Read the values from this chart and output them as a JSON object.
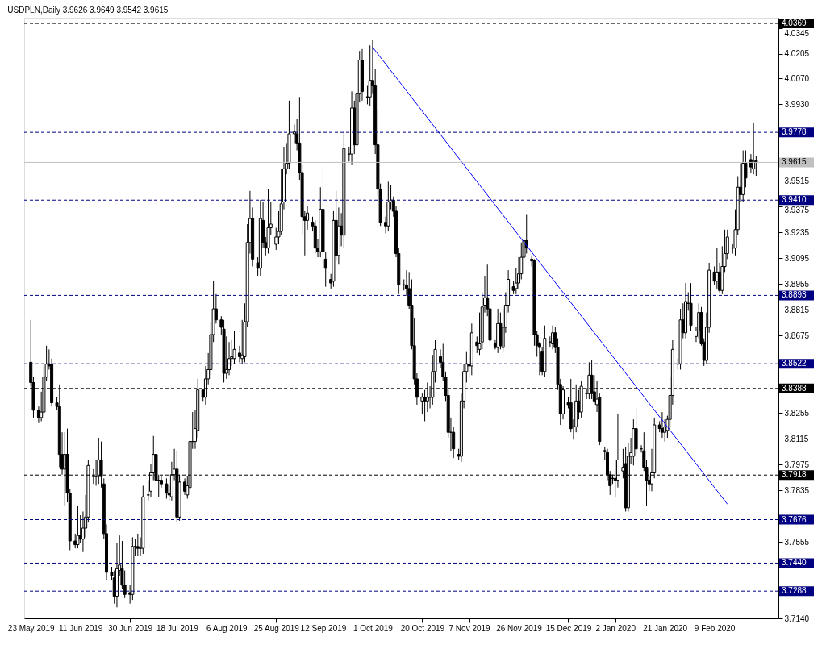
{
  "chart_data": {
    "type": "candlestick",
    "title": "USDPLN,Daily  3.9626 3.9649 3.9542 3.9615",
    "x": [
      "2019-05-23",
      "2019-05-24",
      "2019-05-26",
      "2019-05-27",
      "2019-05-28",
      "2019-05-29",
      "2019-05-30",
      "2019-05-31",
      "2019-06-02",
      "2019-06-03",
      "2019-06-04",
      "2019-06-05",
      "2019-06-06",
      "2019-06-07",
      "2019-06-09",
      "2019-06-10",
      "2019-06-11",
      "2019-06-12",
      "2019-06-13",
      "2019-06-14",
      "2019-06-16",
      "2019-06-17",
      "2019-06-18",
      "2019-06-19",
      "2019-06-20",
      "2019-06-21",
      "2019-06-23",
      "2019-06-24",
      "2019-06-25",
      "2019-06-26",
      "2019-06-27",
      "2019-06-28",
      "2019-06-30",
      "2019-07-01",
      "2019-07-02",
      "2019-07-03",
      "2019-07-04",
      "2019-07-05",
      "2019-07-07",
      "2019-07-08",
      "2019-07-09",
      "2019-07-10",
      "2019-07-11",
      "2019-07-12",
      "2019-07-14",
      "2019-07-15",
      "2019-07-16",
      "2019-07-17",
      "2019-07-18",
      "2019-07-19",
      "2019-07-21",
      "2019-07-22",
      "2019-07-23",
      "2019-07-24",
      "2019-07-25",
      "2019-07-26",
      "2019-07-28",
      "2019-07-29",
      "2019-07-30",
      "2019-07-31",
      "2019-08-01",
      "2019-08-02",
      "2019-08-04",
      "2019-08-05",
      "2019-08-06",
      "2019-08-07",
      "2019-08-08",
      "2019-08-09",
      "2019-08-11",
      "2019-08-12",
      "2019-08-13",
      "2019-08-14",
      "2019-08-15",
      "2019-08-16",
      "2019-08-18",
      "2019-08-19",
      "2019-08-20",
      "2019-08-21",
      "2019-08-22",
      "2019-08-23",
      "2019-08-25",
      "2019-08-26",
      "2019-08-27",
      "2019-08-28",
      "2019-08-29",
      "2019-08-30",
      "2019-09-01",
      "2019-09-02",
      "2019-09-03",
      "2019-09-04",
      "2019-09-05",
      "2019-09-06",
      "2019-09-08",
      "2019-09-09",
      "2019-09-10",
      "2019-09-11",
      "2019-09-12",
      "2019-09-13",
      "2019-09-15",
      "2019-09-16",
      "2019-09-17",
      "2019-09-18",
      "2019-09-19",
      "2019-09-20",
      "2019-09-22",
      "2019-09-23",
      "2019-09-24",
      "2019-09-25",
      "2019-09-26",
      "2019-09-27",
      "2019-09-29",
      "2019-09-30",
      "2019-10-01",
      "2019-10-02",
      "2019-10-03",
      "2019-10-04",
      "2019-10-06",
      "2019-10-07",
      "2019-10-08",
      "2019-10-09",
      "2019-10-10",
      "2019-10-11",
      "2019-10-13",
      "2019-10-14",
      "2019-10-15",
      "2019-10-16",
      "2019-10-17",
      "2019-10-18",
      "2019-10-20",
      "2019-10-21",
      "2019-10-22",
      "2019-10-23",
      "2019-10-24",
      "2019-10-25",
      "2019-10-27",
      "2019-10-28",
      "2019-10-29",
      "2019-10-30",
      "2019-10-31",
      "2019-11-01",
      "2019-11-03",
      "2019-11-04",
      "2019-11-05",
      "2019-11-06",
      "2019-11-07",
      "2019-11-08",
      "2019-11-10",
      "2019-11-11",
      "2019-11-12",
      "2019-11-13",
      "2019-11-14",
      "2019-11-15",
      "2019-11-17",
      "2019-11-18",
      "2019-11-19",
      "2019-11-20",
      "2019-11-21",
      "2019-11-22",
      "2019-11-24",
      "2019-11-25",
      "2019-11-26",
      "2019-11-27",
      "2019-11-28",
      "2019-11-29",
      "2019-12-01",
      "2019-12-02",
      "2019-12-03",
      "2019-12-04",
      "2019-12-05",
      "2019-12-06",
      "2019-12-08",
      "2019-12-09",
      "2019-12-10",
      "2019-12-11",
      "2019-12-12",
      "2019-12-13",
      "2019-12-15",
      "2019-12-16",
      "2019-12-17",
      "2019-12-18",
      "2019-12-19",
      "2019-12-20",
      "2019-12-22",
      "2019-12-23",
      "2019-12-24",
      "2019-12-25",
      "2019-12-26",
      "2019-12-27",
      "2019-12-29",
      "2019-12-30",
      "2019-12-31",
      "2020-01-01",
      "2020-01-02",
      "2020-01-03",
      "2020-01-05",
      "2020-01-06",
      "2020-01-07",
      "2020-01-08",
      "2020-01-09",
      "2020-01-10",
      "2020-01-12",
      "2020-01-13",
      "2020-01-14",
      "2020-01-15",
      "2020-01-16",
      "2020-01-17",
      "2020-01-19",
      "2020-01-20",
      "2020-01-21",
      "2020-01-22",
      "2020-01-23",
      "2020-01-24",
      "2020-01-26",
      "2020-01-27",
      "2020-01-28",
      "2020-01-29",
      "2020-01-30",
      "2020-01-31",
      "2020-02-02",
      "2020-02-03",
      "2020-02-04",
      "2020-02-05",
      "2020-02-06",
      "2020-02-07",
      "2020-02-09",
      "2020-02-10",
      "2020-02-11",
      "2020-02-12",
      "2020-02-13",
      "2020-02-14",
      "2020-02-16",
      "2020-02-17",
      "2020-02-18",
      "2020-02-19",
      "2020-02-20",
      "2020-02-21",
      "2020-02-23",
      "2020-02-24",
      "2020-02-25"
    ],
    "ohlc": [
      [
        3.853,
        3.876,
        3.84,
        3.842
      ],
      [
        3.842,
        3.845,
        3.823,
        3.827
      ],
      [
        3.827,
        3.829,
        3.82,
        3.823
      ],
      [
        3.823,
        3.837,
        3.821,
        3.826
      ],
      [
        3.826,
        3.851,
        3.824,
        3.845
      ],
      [
        3.845,
        3.862,
        3.843,
        3.852
      ],
      [
        3.852,
        3.86,
        3.849,
        3.851
      ],
      [
        3.852,
        3.855,
        3.829,
        3.831
      ],
      [
        3.831,
        3.834,
        3.827,
        3.829
      ],
      [
        3.829,
        3.841,
        3.796,
        3.803
      ],
      [
        3.803,
        3.815,
        3.792,
        3.795
      ],
      [
        3.795,
        3.815,
        3.775,
        3.803
      ],
      [
        3.803,
        3.817,
        3.777,
        3.782
      ],
      [
        3.782,
        3.784,
        3.751,
        3.756
      ],
      [
        3.756,
        3.76,
        3.752,
        3.754
      ],
      [
        3.754,
        3.775,
        3.752,
        3.759
      ],
      [
        3.759,
        3.77,
        3.755,
        3.757
      ],
      [
        3.757,
        3.772,
        3.75,
        3.763
      ],
      [
        3.763,
        3.781,
        3.758,
        3.769
      ],
      [
        3.769,
        3.8,
        3.766,
        3.797
      ],
      [
        3.791,
        3.795,
        3.787,
        3.791
      ],
      [
        3.791,
        3.8,
        3.786,
        3.791
      ],
      [
        3.791,
        3.812,
        3.787,
        3.8
      ],
      [
        3.8,
        3.81,
        3.785,
        3.791
      ],
      [
        3.787,
        3.79,
        3.757,
        3.76
      ],
      [
        3.76,
        3.765,
        3.735,
        3.739
      ],
      [
        3.739,
        3.742,
        3.735,
        3.737
      ],
      [
        3.736,
        3.74,
        3.722,
        3.726
      ],
      [
        3.726,
        3.755,
        3.72,
        3.741
      ],
      [
        3.74,
        3.759,
        3.737,
        3.743
      ],
      [
        3.741,
        3.756,
        3.73,
        3.732
      ],
      [
        3.732,
        3.74,
        3.725,
        3.727
      ],
      [
        3.728,
        3.732,
        3.722,
        3.727
      ],
      [
        3.727,
        3.758,
        3.724,
        3.753
      ],
      [
        3.753,
        3.757,
        3.748,
        3.753
      ],
      [
        3.753,
        3.76,
        3.748,
        3.752
      ],
      [
        3.752,
        3.758,
        3.748,
        3.752
      ],
      [
        3.752,
        3.786,
        3.749,
        3.78
      ],
      [
        3.781,
        3.789,
        3.778,
        3.781
      ],
      [
        3.783,
        3.798,
        3.78,
        3.793
      ],
      [
        3.793,
        3.813,
        3.789,
        3.803
      ],
      [
        3.803,
        3.813,
        3.787,
        3.789
      ],
      [
        3.789,
        3.792,
        3.78,
        3.789
      ],
      [
        3.789,
        3.791,
        3.785,
        3.787
      ],
      [
        3.787,
        3.79,
        3.779,
        3.782
      ],
      [
        3.782,
        3.786,
        3.778,
        3.781
      ],
      [
        3.78,
        3.799,
        3.778,
        3.792
      ],
      [
        3.792,
        3.806,
        3.789,
        3.795
      ],
      [
        3.795,
        3.805,
        3.766,
        3.769
      ],
      [
        3.769,
        3.792,
        3.767,
        3.788
      ],
      [
        3.788,
        3.79,
        3.781,
        3.783
      ],
      [
        3.781,
        3.791,
        3.779,
        3.786
      ],
      [
        3.785,
        3.819,
        3.783,
        3.81
      ],
      [
        3.81,
        3.826,
        3.806,
        3.81
      ],
      [
        3.81,
        3.827,
        3.806,
        3.817
      ],
      [
        3.816,
        3.844,
        3.812,
        3.838
      ],
      [
        3.838,
        3.838,
        3.832,
        3.834
      ],
      [
        3.834,
        3.851,
        3.83,
        3.844
      ],
      [
        3.844,
        3.858,
        3.841,
        3.849
      ],
      [
        3.849,
        3.875,
        3.846,
        3.868
      ],
      [
        3.868,
        3.897,
        3.864,
        3.882
      ],
      [
        3.882,
        3.89,
        3.874,
        3.876
      ],
      [
        3.876,
        3.878,
        3.868,
        3.872
      ],
      [
        3.871,
        3.876,
        3.842,
        3.847
      ],
      [
        3.847,
        3.867,
        3.844,
        3.849
      ],
      [
        3.849,
        3.864,
        3.846,
        3.855
      ],
      [
        3.855,
        3.865,
        3.851,
        3.856
      ],
      [
        3.855,
        3.87,
        3.852,
        3.86
      ],
      [
        3.858,
        3.862,
        3.853,
        3.856
      ],
      [
        3.855,
        3.876,
        3.852,
        3.857
      ],
      [
        3.856,
        3.885,
        3.853,
        3.875
      ],
      [
        3.875,
        3.928,
        3.872,
        3.918
      ],
      [
        3.918,
        3.946,
        3.912,
        3.931
      ],
      [
        3.931,
        3.937,
        3.905,
        3.909
      ],
      [
        3.907,
        3.91,
        3.9,
        3.904
      ],
      [
        3.904,
        3.941,
        3.9,
        3.931
      ],
      [
        3.93,
        3.94,
        3.915,
        3.918
      ],
      [
        3.918,
        3.921,
        3.911,
        3.915
      ],
      [
        3.915,
        3.947,
        3.912,
        3.926
      ],
      [
        3.926,
        3.94,
        3.922,
        3.928
      ],
      [
        3.917,
        3.926,
        3.914,
        3.921
      ],
      [
        3.921,
        3.935,
        3.917,
        3.924
      ],
      [
        3.924,
        3.958,
        3.922,
        3.939
      ],
      [
        3.94,
        3.97,
        3.936,
        3.958
      ],
      [
        3.958,
        3.972,
        3.955,
        3.961
      ],
      [
        3.961,
        3.995,
        3.958,
        3.977
      ],
      [
        3.977,
        3.982,
        3.972,
        3.978
      ],
      [
        3.977,
        3.985,
        3.968,
        3.972
      ],
      [
        3.972,
        3.997,
        3.952,
        3.956
      ],
      [
        3.956,
        3.96,
        3.922,
        3.932
      ],
      [
        3.932,
        3.935,
        3.911,
        3.93
      ],
      [
        3.93,
        3.938,
        3.925,
        3.934
      ],
      [
        3.929,
        3.932,
        3.924,
        3.927
      ],
      [
        3.927,
        3.93,
        3.912,
        3.915
      ],
      [
        3.915,
        3.92,
        3.91,
        3.913
      ],
      [
        3.913,
        3.948,
        3.91,
        3.936
      ],
      [
        3.936,
        3.959,
        3.906,
        3.913
      ],
      [
        3.909,
        3.913,
        3.894,
        3.904
      ],
      [
        3.898,
        3.901,
        3.893,
        3.896
      ],
      [
        3.897,
        3.935,
        3.894,
        3.93
      ],
      [
        3.93,
        3.946,
        3.908,
        3.911
      ],
      [
        3.911,
        3.937,
        3.906,
        3.927
      ],
      [
        3.927,
        3.934,
        3.916,
        3.922
      ],
      [
        3.922,
        3.978,
        3.915,
        3.969
      ],
      [
        3.966,
        3.97,
        3.962,
        3.966
      ],
      [
        3.966,
        4.0,
        3.96,
        3.991
      ],
      [
        3.991,
        3.995,
        3.966,
        3.971
      ],
      [
        3.971,
        4.003,
        3.968,
        3.999
      ],
      [
        3.999,
        4.022,
        3.994,
        4.017
      ],
      [
        4.017,
        4.023,
        3.995,
        4.0
      ],
      [
        3.997,
        4.003,
        3.993,
        3.997
      ],
      [
        3.997,
        4.025,
        3.992,
        4.006
      ],
      [
        4.006,
        4.028,
        3.999,
        4.003
      ],
      [
        4.003,
        4.012,
        3.966,
        3.971
      ],
      [
        3.971,
        3.99,
        3.943,
        3.947
      ],
      [
        3.947,
        3.95,
        3.927,
        3.929
      ],
      [
        3.929,
        3.932,
        3.923,
        3.927
      ],
      [
        3.927,
        3.951,
        3.924,
        3.94
      ],
      [
        3.94,
        3.949,
        3.936,
        3.941
      ],
      [
        3.941,
        3.943,
        3.932,
        3.935
      ],
      [
        3.935,
        3.938,
        3.91,
        3.912
      ],
      [
        3.912,
        3.915,
        3.89,
        3.895
      ],
      [
        3.895,
        3.898,
        3.892,
        3.895
      ],
      [
        3.895,
        3.903,
        3.889,
        3.893
      ],
      [
        3.893,
        3.902,
        3.882,
        3.884
      ],
      [
        3.884,
        3.898,
        3.86,
        3.862
      ],
      [
        3.862,
        3.877,
        3.841,
        3.844
      ],
      [
        3.844,
        3.847,
        3.83,
        3.834
      ],
      [
        3.832,
        3.836,
        3.825,
        3.834
      ],
      [
        3.834,
        3.838,
        3.821,
        3.832
      ],
      [
        3.832,
        3.842,
        3.826,
        3.834
      ],
      [
        3.834,
        3.84,
        3.828,
        3.834
      ],
      [
        3.834,
        3.857,
        3.83,
        3.848
      ],
      [
        3.848,
        3.865,
        3.842,
        3.86
      ],
      [
        3.856,
        3.86,
        3.85,
        3.853
      ],
      [
        3.853,
        3.863,
        3.843,
        3.845
      ],
      [
        3.845,
        3.848,
        3.832,
        3.835
      ],
      [
        3.835,
        3.838,
        3.812,
        3.815
      ],
      [
        3.815,
        3.823,
        3.805,
        3.815
      ],
      [
        3.815,
        3.818,
        3.801,
        3.806
      ],
      [
        3.803,
        3.806,
        3.8,
        3.802
      ],
      [
        3.802,
        3.836,
        3.799,
        3.832
      ],
      [
        3.832,
        3.852,
        3.828,
        3.848
      ],
      [
        3.848,
        3.859,
        3.842,
        3.852
      ],
      [
        3.852,
        3.856,
        3.844,
        3.851
      ],
      [
        3.851,
        3.874,
        3.846,
        3.869
      ],
      [
        3.864,
        3.867,
        3.858,
        3.862
      ],
      [
        3.86,
        3.88,
        3.857,
        3.863
      ],
      [
        3.864,
        3.891,
        3.86,
        3.883
      ],
      [
        3.884,
        3.9,
        3.88,
        3.888
      ],
      [
        3.888,
        3.906,
        3.878,
        3.882
      ],
      [
        3.882,
        3.886,
        3.862,
        3.865
      ],
      [
        3.863,
        3.865,
        3.86,
        3.861
      ],
      [
        3.861,
        3.882,
        3.858,
        3.874
      ],
      [
        3.874,
        3.88,
        3.86,
        3.862
      ],
      [
        3.861,
        3.882,
        3.859,
        3.872
      ],
      [
        3.872,
        3.891,
        3.869,
        3.884
      ],
      [
        3.884,
        3.903,
        3.88,
        3.898
      ],
      [
        3.894,
        3.897,
        3.89,
        3.892
      ],
      [
        3.893,
        3.904,
        3.89,
        3.896
      ],
      [
        3.896,
        3.91,
        3.893,
        3.901
      ],
      [
        3.901,
        3.918,
        3.898,
        3.91
      ],
      [
        3.91,
        3.93,
        3.907,
        3.919
      ],
      [
        3.919,
        3.933,
        3.912,
        3.915
      ],
      [
        3.909,
        3.911,
        3.905,
        3.908
      ],
      [
        3.908,
        3.909,
        3.862,
        3.868
      ],
      [
        3.868,
        3.87,
        3.856,
        3.862
      ],
      [
        3.863,
        3.864,
        3.846,
        3.861
      ],
      [
        3.859,
        3.861,
        3.846,
        3.848
      ],
      [
        3.848,
        3.873,
        3.845,
        3.866
      ],
      [
        3.864,
        3.867,
        3.861,
        3.864
      ],
      [
        3.863,
        3.873,
        3.86,
        3.869
      ],
      [
        3.869,
        3.872,
        3.858,
        3.861
      ],
      [
        3.861,
        3.866,
        3.838,
        3.841
      ],
      [
        3.841,
        3.844,
        3.819,
        3.825
      ],
      [
        3.825,
        3.84,
        3.822,
        3.838
      ],
      [
        3.831,
        3.834,
        3.828,
        3.83
      ],
      [
        3.831,
        3.844,
        3.815,
        3.817
      ],
      [
        3.818,
        3.822,
        3.811,
        3.818
      ],
      [
        3.818,
        3.841,
        3.815,
        3.832
      ],
      [
        3.832,
        3.838,
        3.822,
        3.826
      ],
      [
        3.826,
        3.843,
        3.823,
        3.84
      ],
      [
        3.836,
        3.839,
        3.833,
        3.836
      ],
      [
        3.836,
        3.853,
        3.833,
        3.846
      ],
      [
        3.846,
        3.854,
        3.833,
        3.836
      ],
      [
        3.837,
        3.846,
        3.83,
        3.832
      ],
      [
        3.83,
        3.843,
        3.826,
        3.833
      ],
      [
        3.834,
        3.836,
        3.808,
        3.81
      ],
      [
        3.805,
        3.807,
        3.8,
        3.805
      ],
      [
        3.804,
        3.806,
        3.789,
        3.792
      ],
      [
        3.792,
        3.794,
        3.781,
        3.786
      ],
      [
        3.79,
        3.792,
        3.787,
        3.79
      ],
      [
        3.79,
        3.8,
        3.78,
        3.789
      ],
      [
        3.789,
        3.825,
        3.785,
        3.8
      ],
      [
        3.794,
        3.806,
        3.79,
        3.796
      ],
      [
        3.798,
        3.807,
        3.772,
        3.774
      ],
      [
        3.774,
        3.809,
        3.772,
        3.802
      ],
      [
        3.802,
        3.812,
        3.798,
        3.804
      ],
      [
        3.802,
        3.822,
        3.797,
        3.817
      ],
      [
        3.817,
        3.828,
        3.803,
        3.806
      ],
      [
        3.806,
        3.808,
        3.804,
        3.806
      ],
      [
        3.805,
        3.815,
        3.794,
        3.796
      ],
      [
        3.796,
        3.8,
        3.775,
        3.789
      ],
      [
        3.789,
        3.791,
        3.783,
        3.787
      ],
      [
        3.787,
        3.806,
        3.783,
        3.793
      ],
      [
        3.793,
        3.823,
        3.79,
        3.819
      ],
      [
        3.819,
        3.821,
        3.815,
        3.817
      ],
      [
        3.817,
        3.826,
        3.812,
        3.815
      ],
      [
        3.815,
        3.822,
        3.81,
        3.818
      ],
      [
        3.816,
        3.824,
        3.812,
        3.822
      ],
      [
        3.822,
        3.845,
        3.818,
        3.835
      ],
      [
        3.835,
        3.865,
        3.83,
        3.86
      ],
      [
        3.852,
        3.855,
        3.849,
        3.852
      ],
      [
        3.852,
        3.882,
        3.849,
        3.876
      ],
      [
        3.876,
        3.885,
        3.866,
        3.869
      ],
      [
        3.869,
        3.896,
        3.866,
        3.886
      ],
      [
        3.885,
        3.891,
        3.881,
        3.885
      ],
      [
        3.885,
        3.896,
        3.87,
        3.873
      ],
      [
        3.867,
        3.872,
        3.864,
        3.87
      ],
      [
        3.87,
        3.885,
        3.866,
        3.88
      ],
      [
        3.88,
        3.883,
        3.862,
        3.863
      ],
      [
        3.864,
        3.866,
        3.851,
        3.854
      ],
      [
        3.854,
        3.88,
        3.852,
        3.872
      ],
      [
        3.872,
        3.907,
        3.869,
        3.903
      ],
      [
        3.902,
        3.905,
        3.895,
        3.897
      ],
      [
        3.897,
        3.915,
        3.893,
        3.902
      ],
      [
        3.902,
        3.907,
        3.891,
        3.892
      ],
      [
        3.892,
        3.916,
        3.89,
        3.905
      ],
      [
        3.905,
        3.925,
        3.902,
        3.912
      ],
      [
        3.912,
        3.925,
        3.909,
        3.921
      ],
      [
        3.915,
        3.917,
        3.912,
        3.915
      ],
      [
        3.915,
        3.936,
        3.911,
        3.925
      ],
      [
        3.925,
        3.954,
        3.922,
        3.948
      ],
      [
        3.948,
        3.961,
        3.94,
        3.944
      ],
      [
        3.944,
        3.968,
        3.94,
        3.961
      ],
      [
        3.961,
        3.968,
        3.948,
        3.953
      ],
      [
        3.963,
        3.966,
        3.956,
        3.959
      ],
      [
        3.958,
        3.983,
        3.955,
        3.962
      ],
      [
        3.9626,
        3.9649,
        3.9542,
        3.9615
      ]
    ],
    "series": [
      {
        "type": "line",
        "color": "#0000ff",
        "x": [
          "2019-10-01",
          "2020-02-14"
        ],
        "values": [
          4.024,
          3.776
        ]
      }
    ],
    "xlim": [
      "2019-05-22",
      "2020-03-03"
    ],
    "xticks": [
      {
        "value": "2019-05-23",
        "label": "23 May 2019"
      },
      {
        "value": "2019-06-11",
        "label": "11 Jun 2019"
      },
      {
        "value": "2019-06-30",
        "label": "30 Jun 2019"
      },
      {
        "value": "2019-07-18",
        "label": "18 Jul 2019"
      },
      {
        "value": "2019-08-06",
        "label": "6 Aug 2019"
      },
      {
        "value": "2019-08-25",
        "label": "25 Aug 2019"
      },
      {
        "value": "2019-09-12",
        "label": "12 Sep 2019"
      },
      {
        "value": "2019-10-01",
        "label": "1 Oct 2019"
      },
      {
        "value": "2019-10-20",
        "label": "20 Oct 2019"
      },
      {
        "value": "2019-11-07",
        "label": "7 Nov 2019"
      },
      {
        "value": "2019-11-26",
        "label": "26 Nov 2019"
      },
      {
        "value": "2019-12-15",
        "label": "15 Dec 2019"
      },
      {
        "value": "2020-01-02",
        "label": "2 Jan 2020"
      },
      {
        "value": "2020-01-21",
        "label": "21 Jan 2020"
      },
      {
        "value": "2020-02-09",
        "label": "9 Feb 2020"
      }
    ],
    "ylim": [
      3.714,
      4.04
    ],
    "yticks": [
      4.0345,
      4.0205,
      {
        "value": 4.007,
        "label": "4.0070"
      },
      {
        "value": 3.993,
        "label": "3.9930"
      },
      3.9515,
      3.9375,
      3.9235,
      3.9095,
      3.8955,
      3.8815,
      3.8675,
      3.8255,
      3.8115,
      3.7975,
      3.7835,
      3.7555,
      {
        "value": 3.714,
        "label": "3.7140"
      }
    ],
    "ref_lines": [
      {
        "axis": "y",
        "value": 4.0369,
        "label": "4.0369",
        "color": "#000000",
        "line_style": "dashed"
      },
      {
        "axis": "y",
        "value": 3.9778,
        "label": "3.9778",
        "color": "#000080",
        "line_style": "dashed"
      },
      {
        "axis": "y",
        "value": 3.9615,
        "label": "3.9615",
        "color": "#c0c0c0",
        "line_style": "solid"
      },
      {
        "axis": "y",
        "value": 3.941,
        "label": "3.9410",
        "color": "#000080",
        "line_style": "dashed"
      },
      {
        "axis": "y",
        "value": 3.8893,
        "label": "3.8893",
        "color": "#000080",
        "line_style": "dashed"
      },
      {
        "axis": "y",
        "value": 3.8522,
        "label": "3.8522",
        "color": "#000080",
        "line_style": "dashed"
      },
      {
        "axis": "y",
        "value": 3.8388,
        "label": "3.8388",
        "color": "#000000",
        "line_style": "dashed"
      },
      {
        "axis": "y",
        "value": 3.7918,
        "label": "3.7918",
        "color": "#000000",
        "line_style": "dashed"
      },
      {
        "axis": "y",
        "value": 3.7676,
        "label": "3.7676",
        "color": "#000080",
        "line_style": "dashed"
      },
      {
        "axis": "y",
        "value": 3.744,
        "label": "3.7440",
        "color": "#000080",
        "line_style": "dashed"
      },
      {
        "axis": "y",
        "value": 3.7288,
        "label": "3.7288",
        "color": "#000080",
        "line_style": "dashed"
      }
    ],
    "grid": false
  }
}
